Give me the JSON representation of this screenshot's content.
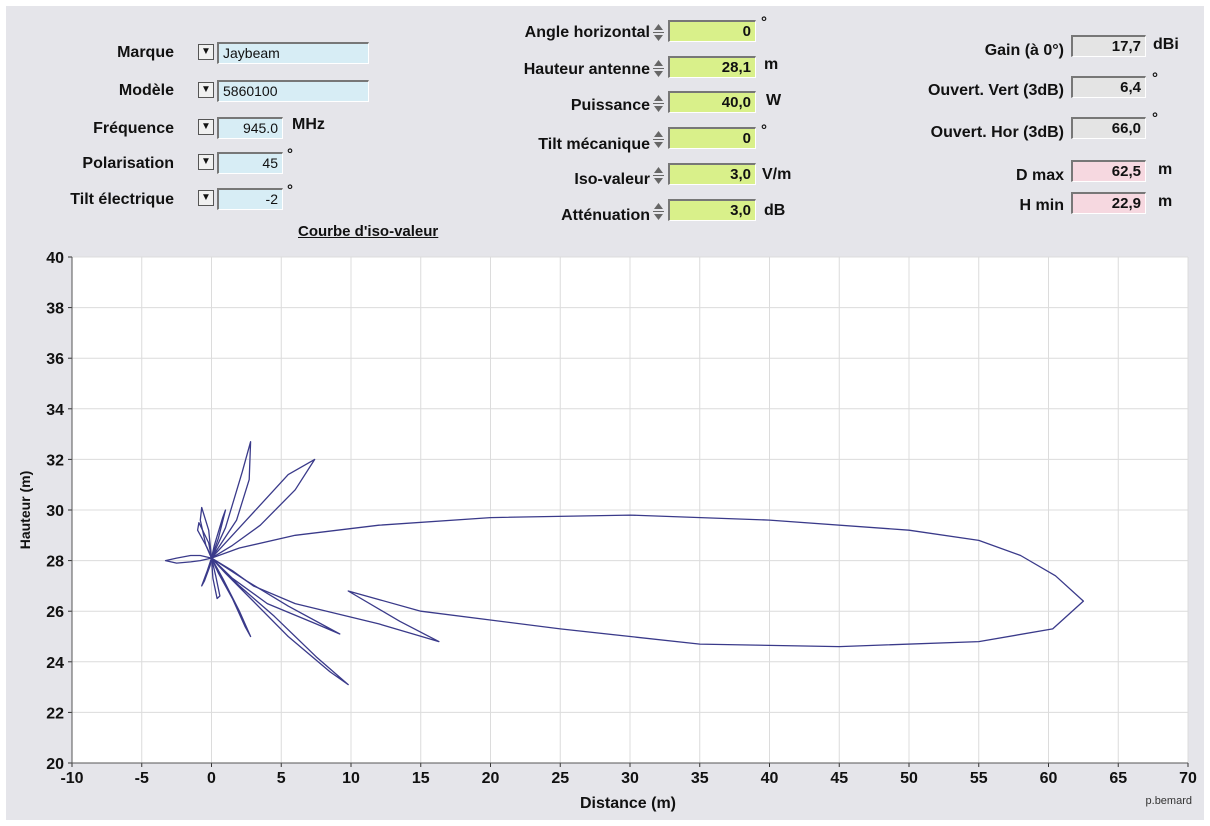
{
  "left": {
    "marque": {
      "label": "Marque",
      "value": "Jaybeam"
    },
    "modele": {
      "label": "Modèle",
      "value": "5860100"
    },
    "frequence": {
      "label": "Fréquence",
      "value": "945.0",
      "unit": "MHz"
    },
    "polarisation": {
      "label": "Polarisation",
      "value": "45",
      "unit": "°"
    },
    "tilt_elec": {
      "label": "Tilt électrique",
      "value": "-2",
      "unit": "°"
    }
  },
  "middle": {
    "angle_h": {
      "label": "Angle horizontal",
      "value": "0",
      "unit": "°"
    },
    "hauteur": {
      "label": "Hauteur antenne",
      "value": "28,1",
      "unit": "m"
    },
    "puissance": {
      "label": "Puissance",
      "value": "40,0",
      "unit": "W"
    },
    "tilt_meca": {
      "label": "Tilt mécanique",
      "value": "0",
      "unit": "°"
    },
    "iso": {
      "label": "Iso-valeur",
      "value": "3,0",
      "unit": "V/m"
    },
    "attenuation": {
      "label": "Atténuation",
      "value": "3,0",
      "unit": "dB"
    }
  },
  "link_label": "Courbe d'iso-valeur",
  "right": {
    "gain": {
      "label": "Gain (à 0°)",
      "value": "17,7",
      "unit": "dBi"
    },
    "ouv_vert": {
      "label": "Ouvert. Vert (3dB)",
      "value": "6,4",
      "unit": "°"
    },
    "ouv_hor": {
      "label": "Ouvert. Hor (3dB)",
      "value": "66,0",
      "unit": "°"
    },
    "dmax": {
      "label": "D max",
      "value": "62,5",
      "unit": "m"
    },
    "hmin": {
      "label": "H min",
      "value": "22,9",
      "unit": "m"
    }
  },
  "colors": {
    "curve": "#3a3a8a",
    "field_blue": "#d7edf5",
    "field_green": "#d9f08a",
    "field_pink": "#f6d8e0"
  },
  "chart_data": {
    "type": "line",
    "xlabel": "Distance (m)",
    "ylabel": "Hauteur (m)",
    "xlim": [
      -10,
      70
    ],
    "ylim": [
      20,
      40
    ],
    "x_ticks": [
      "-10",
      "-5",
      "0",
      "5",
      "10",
      "15",
      "20",
      "25",
      "30",
      "35",
      "40",
      "45",
      "50",
      "55",
      "60",
      "65",
      "70"
    ],
    "y_ticks": [
      "20",
      "22",
      "24",
      "26",
      "28",
      "30",
      "32",
      "34",
      "36",
      "38",
      "40"
    ],
    "grid": true,
    "credit": "p.bemard",
    "series": [
      {
        "points": [
          [
            0,
            28.1
          ],
          [
            -0.8,
            28.2
          ],
          [
            -1.5,
            28.2
          ],
          [
            -2.5,
            28.1
          ],
          [
            -3.3,
            28.0
          ],
          [
            -2.5,
            27.9
          ],
          [
            -1.5,
            27.95
          ],
          [
            -0.8,
            28.0
          ],
          [
            0,
            28.1
          ]
        ]
      },
      {
        "points": [
          [
            0,
            28.1
          ],
          [
            -0.4,
            28.6
          ],
          [
            -0.8,
            29.6
          ],
          [
            -0.7,
            30.1
          ],
          [
            -0.2,
            29.2
          ],
          [
            0,
            28.1
          ]
        ]
      },
      {
        "points": [
          [
            0,
            28.1
          ],
          [
            -0.3,
            28.5
          ],
          [
            -1.0,
            29.2
          ],
          [
            -0.9,
            29.5
          ],
          [
            -0.2,
            28.7
          ],
          [
            0,
            28.1
          ]
        ]
      },
      {
        "points": [
          [
            0,
            28.1
          ],
          [
            0.5,
            28.9
          ],
          [
            1.0,
            30.0
          ],
          [
            0.8,
            29.7
          ],
          [
            0.2,
            28.6
          ],
          [
            0,
            28.1
          ]
        ]
      },
      {
        "points": [
          [
            0,
            28.1
          ],
          [
            1.0,
            29.3
          ],
          [
            2.2,
            31.5
          ],
          [
            2.8,
            32.7
          ],
          [
            2.7,
            31.2
          ],
          [
            1.8,
            29.6
          ],
          [
            0,
            28.1
          ]
        ]
      },
      {
        "points": [
          [
            0,
            28.1
          ],
          [
            2.5,
            29.6
          ],
          [
            5.5,
            31.4
          ],
          [
            7.4,
            32.0
          ],
          [
            6.0,
            30.8
          ],
          [
            3.5,
            29.4
          ],
          [
            1.5,
            28.6
          ],
          [
            0,
            28.1
          ]
        ]
      },
      {
        "points": [
          [
            0,
            28.1
          ],
          [
            2.0,
            28.5
          ],
          [
            6.0,
            29.0
          ],
          [
            12.0,
            29.4
          ],
          [
            20.0,
            29.7
          ],
          [
            30.0,
            29.8
          ],
          [
            40.0,
            29.6
          ],
          [
            50.0,
            29.2
          ],
          [
            55.0,
            28.8
          ],
          [
            58.0,
            28.2
          ],
          [
            60.5,
            27.4
          ],
          [
            62.5,
            26.4
          ],
          [
            60.3,
            25.3
          ],
          [
            55.0,
            24.8
          ],
          [
            45.0,
            24.6
          ],
          [
            35.0,
            24.7
          ],
          [
            25.0,
            25.3
          ],
          [
            15.0,
            26.0
          ],
          [
            9.8,
            26.8
          ],
          [
            13.5,
            25.6
          ],
          [
            16.3,
            24.8
          ],
          [
            12.0,
            25.5
          ],
          [
            6.0,
            26.3
          ],
          [
            3.0,
            27.0
          ],
          [
            1.5,
            27.6
          ],
          [
            0,
            28.1
          ]
        ]
      },
      {
        "points": [
          [
            0,
            28.1
          ],
          [
            2.5,
            27.2
          ],
          [
            5.5,
            26.2
          ],
          [
            9.2,
            25.1
          ],
          [
            7.5,
            25.5
          ],
          [
            4.0,
            26.3
          ],
          [
            1.5,
            27.3
          ],
          [
            0,
            28.1
          ]
        ]
      },
      {
        "points": [
          [
            0,
            28.1
          ],
          [
            2.0,
            27.0
          ],
          [
            4.5,
            25.8
          ],
          [
            7.5,
            24.2
          ],
          [
            9.8,
            23.1
          ],
          [
            8.5,
            23.6
          ],
          [
            5.5,
            25.0
          ],
          [
            2.8,
            26.5
          ],
          [
            1.0,
            27.5
          ],
          [
            0,
            28.1
          ]
        ]
      },
      {
        "points": [
          [
            0,
            28.1
          ],
          [
            0.8,
            27.3
          ],
          [
            2.0,
            26.0
          ],
          [
            2.8,
            25.0
          ],
          [
            2.4,
            25.4
          ],
          [
            1.5,
            26.5
          ],
          [
            0.5,
            27.5
          ],
          [
            0,
            28.1
          ]
        ]
      },
      {
        "points": [
          [
            0,
            28.1
          ],
          [
            0.3,
            27.4
          ],
          [
            0.6,
            26.6
          ],
          [
            0.4,
            26.5
          ],
          [
            0.1,
            27.3
          ],
          [
            0,
            28.1
          ]
        ]
      },
      {
        "points": [
          [
            0,
            28.1
          ],
          [
            -0.3,
            27.6
          ],
          [
            -0.7,
            27.0
          ],
          [
            -0.5,
            27.2
          ],
          [
            -0.1,
            27.8
          ],
          [
            0,
            28.1
          ]
        ]
      }
    ]
  }
}
